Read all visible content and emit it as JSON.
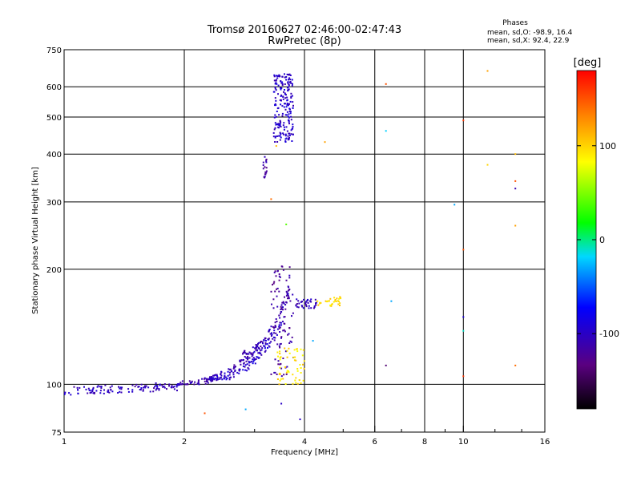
{
  "header": {
    "title": "Tromsø 20160627 02:46:00-02:47:43",
    "subtitle": "RwPretec (8p)"
  },
  "phases_box": {
    "heading": "Phases",
    "line_o": "mean, sd,O: -98.9, 16.4",
    "line_x": "mean, sd,X:  92.4, 22.9"
  },
  "chart_data": {
    "type": "scatter",
    "xlabel": "Frequency [MHz]",
    "ylabel": "Stationary phase Virtual Height [km]",
    "x_scale": "log2",
    "y_scale": "log",
    "xlim": [
      1,
      16
    ],
    "ylim": [
      75,
      750
    ],
    "x_ticks": [
      {
        "value": 1,
        "label": "1"
      },
      {
        "value": 2,
        "label": "2"
      },
      {
        "value": 4,
        "label": "4"
      },
      {
        "value": 6,
        "label": "6"
      },
      {
        "value": 8,
        "label": "8"
      },
      {
        "value": 10,
        "label": "10"
      },
      {
        "value": 16,
        "label": "16"
      }
    ],
    "x_minor_ticks": [
      3,
      5,
      7,
      9,
      12,
      14
    ],
    "y_ticks": [
      {
        "value": 75,
        "label": "75"
      },
      {
        "value": 100,
        "label": "100"
      },
      {
        "value": 200,
        "label": "200"
      },
      {
        "value": 300,
        "label": "300"
      },
      {
        "value": 400,
        "label": "400"
      },
      {
        "value": 500,
        "label": "500"
      },
      {
        "value": 600,
        "label": "600"
      },
      {
        "value": 750,
        "label": "750"
      }
    ],
    "grid": true,
    "colorbar": {
      "label": "[deg]",
      "range": [
        -180,
        180
      ],
      "ticks": [
        {
          "value": 100,
          "label": "100"
        },
        {
          "value": 0,
          "label": "0"
        },
        {
          "value": -100,
          "label": "-100"
        }
      ]
    },
    "clusters": [
      {
        "group": "low-trace",
        "x": [
          1.0,
          1.95
        ],
        "y": [
          93,
          102
        ],
        "phase": -105,
        "count": 120
      },
      {
        "group": "trace-rise-1",
        "x": [
          1.95,
          3.2
        ],
        "y": [
          100,
          132
        ],
        "phase": -112,
        "count": 110
      },
      {
        "group": "trace-rise-2",
        "x": [
          2.3,
          3.6
        ],
        "y": [
          103,
          150
        ],
        "phase": -98,
        "count": 110
      },
      {
        "group": "trace-rise-3",
        "x": [
          2.8,
          3.7
        ],
        "y": [
          120,
          185
        ],
        "phase": -108,
        "count": 80
      },
      {
        "group": "f-trace",
        "x": [
          3.3,
          3.75
        ],
        "y": [
          105,
          205
        ],
        "phase": -120,
        "count": 90
      },
      {
        "group": "x-trace",
        "x": [
          3.4,
          4.0
        ],
        "y": [
          100,
          125
        ],
        "phase": 95,
        "count": 55
      },
      {
        "group": "cusp",
        "x": [
          3.8,
          4.3
        ],
        "y": [
          158,
          167
        ],
        "phase": -105,
        "count": 40
      },
      {
        "group": "x-cusp",
        "x": [
          4.3,
          5.0
        ],
        "y": [
          160,
          170
        ],
        "phase": 98,
        "count": 30
      },
      {
        "group": "f2-column",
        "x": [
          3.35,
          3.75
        ],
        "y": [
          430,
          650
        ],
        "phase": -100,
        "count": 200
      },
      {
        "group": "f2-streak",
        "x": [
          3.15,
          3.22
        ],
        "y": [
          325,
          395
        ],
        "phase": -115,
        "count": 18
      }
    ],
    "points": [
      {
        "x": 6.4,
        "y": 610,
        "phase": 150
      },
      {
        "x": 6.4,
        "y": 460,
        "phase": -20
      },
      {
        "x": 6.6,
        "y": 165,
        "phase": -30
      },
      {
        "x": 6.4,
        "y": 112,
        "phase": -140
      },
      {
        "x": 10.0,
        "y": 490,
        "phase": 160
      },
      {
        "x": 9.5,
        "y": 295,
        "phase": -30
      },
      {
        "x": 10.0,
        "y": 225,
        "phase": 150
      },
      {
        "x": 10.0,
        "y": 150,
        "phase": -90
      },
      {
        "x": 10.0,
        "y": 138,
        "phase": -10
      },
      {
        "x": 10.0,
        "y": 105,
        "phase": 160
      },
      {
        "x": 11.5,
        "y": 660,
        "phase": 120
      },
      {
        "x": 11.5,
        "y": 375,
        "phase": 100
      },
      {
        "x": 13.5,
        "y": 400,
        "phase": 110
      },
      {
        "x": 13.5,
        "y": 340,
        "phase": 150
      },
      {
        "x": 13.5,
        "y": 325,
        "phase": -110
      },
      {
        "x": 13.5,
        "y": 260,
        "phase": 120
      },
      {
        "x": 13.5,
        "y": 112,
        "phase": 140
      },
      {
        "x": 4.5,
        "y": 430,
        "phase": 120
      },
      {
        "x": 3.4,
        "y": 420,
        "phase": 110
      },
      {
        "x": 3.3,
        "y": 305,
        "phase": 140
      },
      {
        "x": 3.6,
        "y": 262,
        "phase": 40
      },
      {
        "x": 2.25,
        "y": 84,
        "phase": 150
      },
      {
        "x": 2.85,
        "y": 86,
        "phase": -30
      },
      {
        "x": 3.5,
        "y": 89,
        "phase": -100
      },
      {
        "x": 3.9,
        "y": 81,
        "phase": -100
      },
      {
        "x": 4.2,
        "y": 130,
        "phase": -30
      }
    ]
  }
}
